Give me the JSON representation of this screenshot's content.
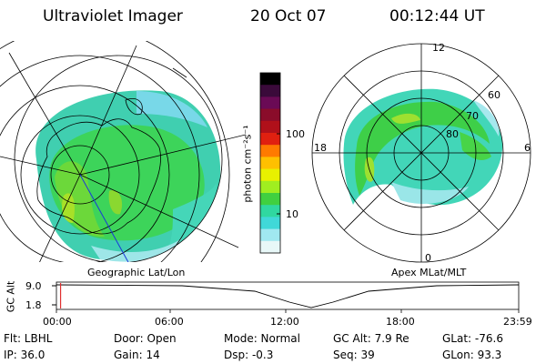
{
  "header": {
    "title": "Ultraviolet Imager",
    "date": "20 Oct 07",
    "time": "00:12:44 UT"
  },
  "colorbar": {
    "unit_label": "photon cm⁻²s⁻¹",
    "ticks": [
      "100",
      "10"
    ],
    "colors": [
      "#000000",
      "#3a0a3a",
      "#6a0a55",
      "#8a0c2a",
      "#b0101a",
      "#e02010",
      "#ff7a00",
      "#ffc000",
      "#e8f000",
      "#a0ee20",
      "#40d040",
      "#30d8a0",
      "#40d8d8",
      "#a0e8f0",
      "#e8f8f8"
    ]
  },
  "left_map": {
    "label": "Geographic Lat/Lon"
  },
  "right_map": {
    "label": "Apex  MLat/MLT",
    "mlt_labels": {
      "top": "12",
      "left": "18",
      "right": "6",
      "bottom": "0"
    },
    "lat_labels": [
      "60",
      "70",
      "80"
    ]
  },
  "timeline": {
    "axis_label": "GC Alt",
    "y_ticks": [
      "9.0",
      "1.8"
    ],
    "x_ticks": [
      "00:00",
      "06:00",
      "12:00",
      "18:00",
      "23:59"
    ],
    "current_time_fraction": 0.009
  },
  "info": {
    "flt": "Flt: LBHL",
    "ip": "IP: 36.0",
    "door": "Door: Open",
    "gain": "Gain: 14",
    "mode": "Mode: Normal",
    "dsp": "Dsp:   -0.3",
    "gc_alt": "GC Alt: 7.9 Re",
    "seq": "Seq: 39",
    "glat": "GLat: -76.6",
    "glon": "GLon:  93.3"
  }
}
